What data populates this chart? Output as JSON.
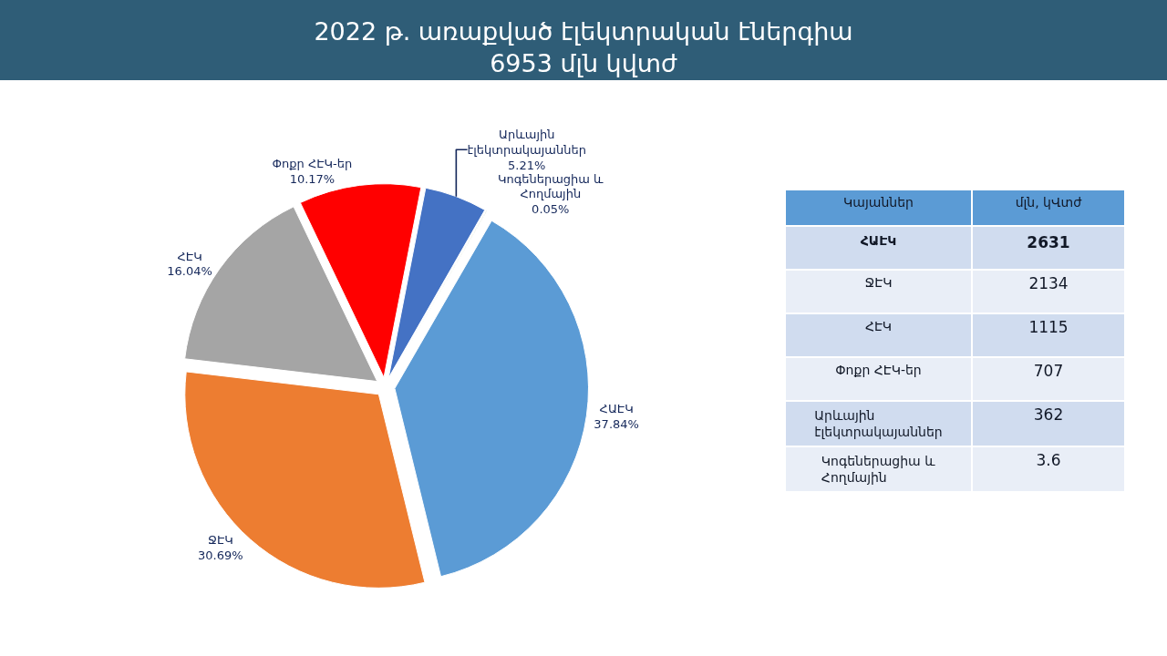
{
  "chart_data": [
    {
      "type": "pie",
      "title": "2022 թ. առաքված էլեկտրական էներգիա\n6953 մլն կվտժ",
      "categories": [
        "ՀԱԷԿ",
        "ՋԷԿ",
        "ՀԷԿ",
        "Փոքր ՀԷԿ-եր",
        "Արևային էլեկտրակայաններ",
        "Կոգեներացիա և Հողմային"
      ],
      "values": [
        37.84,
        30.69,
        16.04,
        10.17,
        5.21,
        0.05
      ],
      "colors": [
        "#5b9bd5",
        "#ed7d31",
        "#a5a5a5",
        "#ff0000",
        "#4472c4",
        "#548235"
      ],
      "value_labels": [
        "37.84%",
        "30.69%",
        "16.04%",
        "10.17%",
        "5.21%",
        "0.05%"
      ]
    },
    {
      "type": "other",
      "annotations": [
        "Կայաններ",
        "մլն, կՎտժ"
      ],
      "categories": [
        "ՀԱԷԿ",
        "ՋԷԿ",
        "ՀԷԿ",
        "Փոքր ՀԷԿ-եր",
        "Արևային էլեկտրակայաններ",
        "Կոգեներացիա և Հողմային"
      ],
      "values": [
        2631,
        2134,
        1115,
        707,
        362,
        3.6
      ],
      "data_labels": true
    }
  ]
}
